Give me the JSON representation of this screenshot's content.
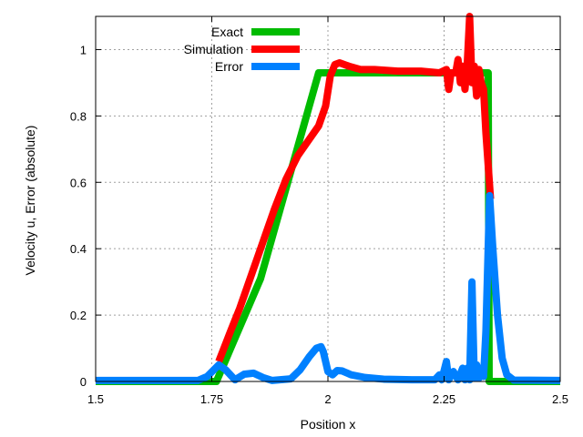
{
  "chart_data": {
    "type": "line",
    "title": "",
    "xlabel": "Position x",
    "ylabel": "Velocity u, Error (absolute)",
    "xlim": [
      1.5,
      2.5
    ],
    "ylim": [
      0,
      1.1
    ],
    "grid": true,
    "legend_position": "top-left",
    "x_ticks": [
      {
        "value": 1.5,
        "label": "1.5"
      },
      {
        "value": 1.75,
        "label": "1.75"
      },
      {
        "value": 2.0,
        "label": "2"
      },
      {
        "value": 2.25,
        "label": "2.25"
      },
      {
        "value": 2.5,
        "label": "2.5"
      }
    ],
    "y_ticks": [
      {
        "value": 0,
        "label": "0"
      },
      {
        "value": 0.2,
        "label": "0.2"
      },
      {
        "value": 0.4,
        "label": "0.4"
      },
      {
        "value": 0.6,
        "label": "0.6"
      },
      {
        "value": 0.8,
        "label": "0.8"
      },
      {
        "value": 1.0,
        "label": "1"
      }
    ],
    "series": [
      {
        "name": "Exact",
        "color": "#00bb00",
        "points": [
          [
            1.5,
            0
          ],
          [
            1.76,
            0
          ],
          [
            1.855,
            0.31
          ],
          [
            1.98,
            0.93
          ],
          [
            2.345,
            0.93
          ],
          [
            2.347,
            0
          ],
          [
            2.5,
            0
          ]
        ]
      },
      {
        "name": "Simulation",
        "color": "#ff0000",
        "points": [
          [
            1.765,
            0.06
          ],
          [
            1.79,
            0.15
          ],
          [
            1.81,
            0.22
          ],
          [
            1.835,
            0.32
          ],
          [
            1.86,
            0.42
          ],
          [
            1.885,
            0.52
          ],
          [
            1.91,
            0.61
          ],
          [
            1.935,
            0.68
          ],
          [
            1.96,
            0.73
          ],
          [
            1.98,
            0.77
          ],
          [
            1.995,
            0.83
          ],
          [
            2.005,
            0.92
          ],
          [
            2.015,
            0.955
          ],
          [
            2.025,
            0.96
          ],
          [
            2.045,
            0.95
          ],
          [
            2.07,
            0.94
          ],
          [
            2.1,
            0.94
          ],
          [
            2.15,
            0.935
          ],
          [
            2.2,
            0.935
          ],
          [
            2.24,
            0.93
          ],
          [
            2.255,
            0.94
          ],
          [
            2.26,
            0.88
          ],
          [
            2.265,
            0.93
          ],
          [
            2.275,
            0.93
          ],
          [
            2.28,
            0.97
          ],
          [
            2.285,
            0.9
          ],
          [
            2.29,
            0.95
          ],
          [
            2.295,
            0.88
          ],
          [
            2.3,
            0.96
          ],
          [
            2.305,
            1.1
          ],
          [
            2.31,
            0.9
          ],
          [
            2.315,
            0.95
          ],
          [
            2.32,
            0.86
          ],
          [
            2.325,
            0.94
          ],
          [
            2.33,
            0.9
          ],
          [
            2.335,
            0.88
          ],
          [
            2.34,
            0.75
          ],
          [
            2.35,
            0.55
          ]
        ]
      },
      {
        "name": "Error",
        "color": "#0080ff",
        "points": [
          [
            1.5,
            0.003
          ],
          [
            1.72,
            0.003
          ],
          [
            1.74,
            0.015
          ],
          [
            1.765,
            0.05
          ],
          [
            1.78,
            0.035
          ],
          [
            1.8,
            0.005
          ],
          [
            1.82,
            0.022
          ],
          [
            1.84,
            0.025
          ],
          [
            1.86,
            0.012
          ],
          [
            1.88,
            0.003
          ],
          [
            1.92,
            0.008
          ],
          [
            1.94,
            0.035
          ],
          [
            1.96,
            0.075
          ],
          [
            1.975,
            0.1
          ],
          [
            1.985,
            0.105
          ],
          [
            1.99,
            0.09
          ],
          [
            2.0,
            0.03
          ],
          [
            2.01,
            0.02
          ],
          [
            2.02,
            0.033
          ],
          [
            2.03,
            0.032
          ],
          [
            2.05,
            0.02
          ],
          [
            2.08,
            0.012
          ],
          [
            2.12,
            0.007
          ],
          [
            2.18,
            0.005
          ],
          [
            2.23,
            0.005
          ],
          [
            2.24,
            0.02
          ],
          [
            2.245,
            0.005
          ],
          [
            2.255,
            0.06
          ],
          [
            2.26,
            0.005
          ],
          [
            2.27,
            0.03
          ],
          [
            2.28,
            0.005
          ],
          [
            2.29,
            0.04
          ],
          [
            2.295,
            0.005
          ],
          [
            2.3,
            0.04
          ],
          [
            2.305,
            0.005
          ],
          [
            2.31,
            0.3
          ],
          [
            2.315,
            0.01
          ],
          [
            2.32,
            0.05
          ],
          [
            2.325,
            0.01
          ],
          [
            2.33,
            0.04
          ],
          [
            2.335,
            0.015
          ],
          [
            2.34,
            0.15
          ],
          [
            2.348,
            0.56
          ],
          [
            2.355,
            0.4
          ],
          [
            2.365,
            0.2
          ],
          [
            2.375,
            0.07
          ],
          [
            2.385,
            0.02
          ],
          [
            2.4,
            0.004
          ],
          [
            2.5,
            0.003
          ]
        ]
      }
    ]
  }
}
